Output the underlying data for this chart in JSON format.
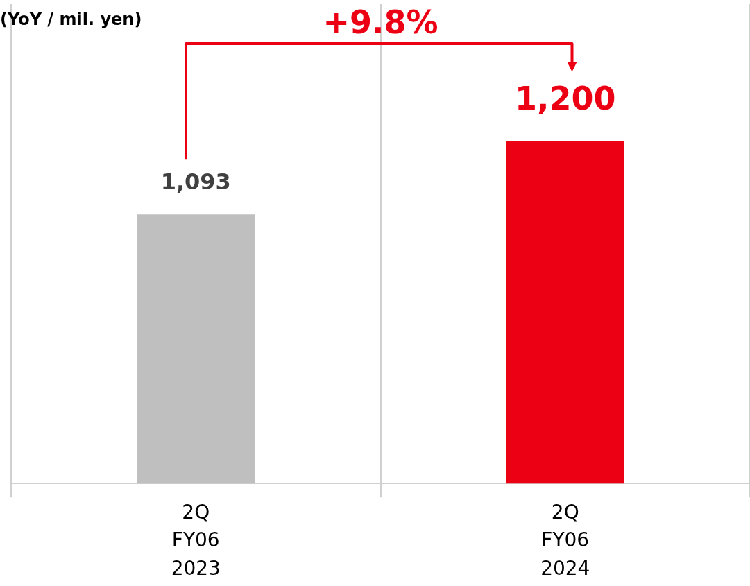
{
  "chart_data": {
    "type": "bar",
    "subtitle": "(YoY / mil. yen)",
    "categories": [
      "2Q\nFY06\n2023",
      "2Q\nFY06\n2024"
    ],
    "values": [
      1093,
      1200
    ],
    "colors": [
      "#bfbfbf",
      "#ec0013"
    ],
    "value_labels": [
      "1,093",
      "1,200"
    ],
    "ylim": [
      700,
      1400
    ],
    "tick_labels": "x",
    "grid": "x",
    "annotations": [
      "+9.8%"
    ],
    "legend": false
  }
}
